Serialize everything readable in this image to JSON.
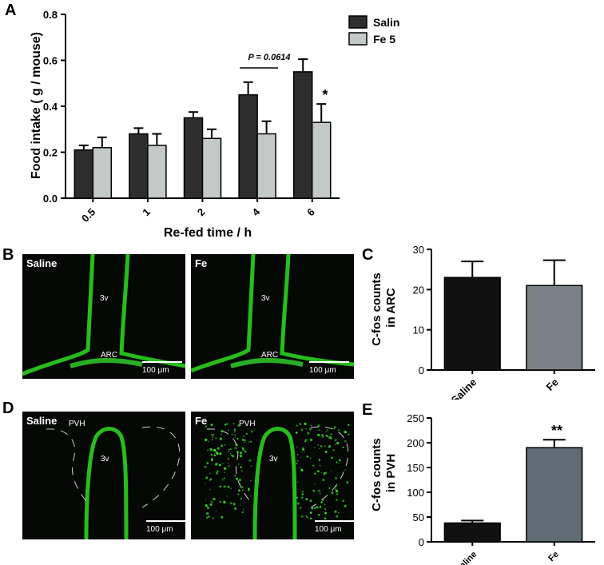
{
  "panel_labels": {
    "A": "A",
    "B": "B",
    "C": "C",
    "D": "D",
    "E": "E"
  },
  "chart_data": [
    {
      "id": "A",
      "type": "bar",
      "categories": [
        "0.5",
        "1",
        "2",
        "4",
        "6"
      ],
      "series": [
        {
          "name": "Saline",
          "values": [
            0.21,
            0.28,
            0.35,
            0.45,
            0.55
          ],
          "errors": [
            0.02,
            0.025,
            0.025,
            0.055,
            0.055
          ],
          "color": "#2e2e2e"
        },
        {
          "name": "Fe 5",
          "values": [
            0.22,
            0.23,
            0.26,
            0.28,
            0.33
          ],
          "errors": [
            0.045,
            0.05,
            0.04,
            0.055,
            0.08
          ],
          "color": "#c3c9c6"
        }
      ],
      "xlabel": "Re-fed time / h",
      "ylabel": "Food intake ( g / mouse)",
      "ylim": [
        0,
        0.8
      ],
      "yticks": [
        "0.0",
        "0.2",
        "0.4",
        "0.6",
        "0.8"
      ],
      "legend": "top-right",
      "annotations": {
        "pvalue": "P = 0.0614",
        "star": "*"
      }
    },
    {
      "id": "C",
      "type": "bar",
      "categories": [
        "Saline",
        "Fe"
      ],
      "values": [
        23,
        21
      ],
      "errors": [
        4,
        6.3
      ],
      "colors": [
        "#111111",
        "#7b8287"
      ],
      "ylabel": "C-fos counts in ARC",
      "ylabel_lines": [
        "C-fos counts",
        "in ARC"
      ],
      "ylim": [
        0,
        30
      ],
      "yticks": [
        "0",
        "10",
        "20",
        "30"
      ]
    },
    {
      "id": "E",
      "type": "bar",
      "categories": [
        "Saline",
        "Fe"
      ],
      "values": [
        38,
        190
      ],
      "errors": [
        5,
        16
      ],
      "colors": [
        "#111111",
        "#5f6c75"
      ],
      "ylabel": "C-fos counts in PVH",
      "ylabel_lines": [
        "C-fos counts",
        "in PVH"
      ],
      "ylim": [
        0,
        250
      ],
      "yticks": [
        "0",
        "50",
        "100",
        "150",
        "200",
        "250"
      ],
      "annotations": {
        "star": "**"
      }
    }
  ],
  "micrographs": {
    "B_left": {
      "title": "Saline",
      "ventricle": "3v",
      "region": "ARC",
      "scale": "100 μm"
    },
    "B_right": {
      "title": "Fe",
      "ventricle": "3v",
      "region": "ARC",
      "scale": "100 μm"
    },
    "D_left": {
      "title": "Saline",
      "ventricle": "3v",
      "region": "PVH",
      "scale": "100 μm"
    },
    "D_right": {
      "title": "Fe",
      "ventricle": "3v",
      "region": "PVH",
      "scale": "100 μm"
    }
  }
}
